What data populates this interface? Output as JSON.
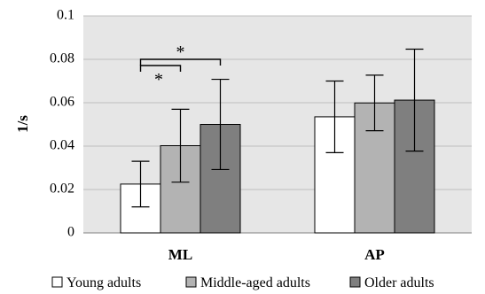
{
  "chart_data": {
    "type": "bar",
    "title": "",
    "xlabel": "",
    "ylabel": "1/s",
    "ylim": [
      0,
      0.1
    ],
    "yticks": [
      "0",
      "0.02",
      "0.04",
      "0.06",
      "0.08",
      "0.1"
    ],
    "ytick_values": [
      0,
      0.02,
      0.04,
      0.06,
      0.08,
      0.1
    ],
    "categories": [
      "ML",
      "AP"
    ],
    "series": [
      {
        "name": "Young adults",
        "values": [
          0.0225,
          0.0535
        ],
        "error": [
          0.0105,
          0.0165
        ],
        "color": "#ffffff"
      },
      {
        "name": "Middle-aged adults",
        "values": [
          0.0402,
          0.0599
        ],
        "error": [
          0.0168,
          0.0128
        ],
        "color": "#b3b3b3"
      },
      {
        "name": "Older adults",
        "values": [
          0.05,
          0.0612
        ],
        "error": [
          0.0208,
          0.0235
        ],
        "color": "#7f7f7f"
      }
    ],
    "significance": [
      {
        "category": "ML",
        "from": 0,
        "to": 1,
        "label": "*"
      },
      {
        "category": "ML",
        "from": 0,
        "to": 2,
        "label": "*"
      }
    ],
    "grid": true,
    "legend_position": "bottom",
    "plot_background": "#e6e6e6"
  }
}
